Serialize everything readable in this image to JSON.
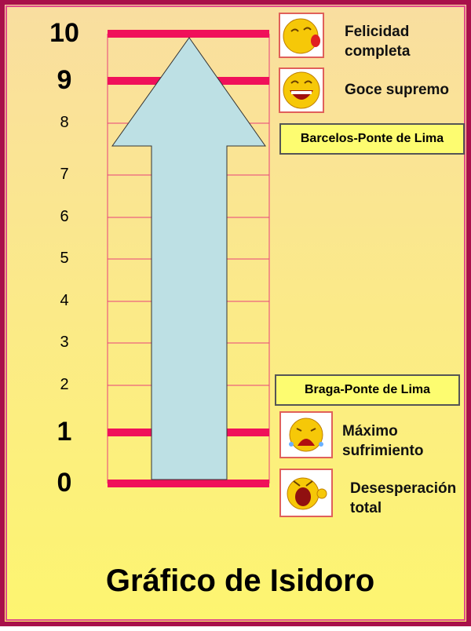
{
  "scale": [
    {
      "value": "10",
      "emphasis": true
    },
    {
      "value": "9",
      "emphasis": true
    },
    {
      "value": "8",
      "emphasis": false
    },
    {
      "value": "7",
      "emphasis": false
    },
    {
      "value": "6",
      "emphasis": false
    },
    {
      "value": "5",
      "emphasis": false
    },
    {
      "value": "4",
      "emphasis": false
    },
    {
      "value": "3",
      "emphasis": false
    },
    {
      "value": "2",
      "emphasis": false
    },
    {
      "value": "1",
      "emphasis": true
    },
    {
      "value": "0",
      "emphasis": true
    }
  ],
  "levels": {
    "l10": {
      "label_line1": "Felicidad",
      "label_line2": "completa",
      "icon": "kissing-face-icon"
    },
    "l9": {
      "label": "Goce supremo",
      "icon": "laughing-face-icon"
    },
    "l1": {
      "label_line1": "Máximo",
      "label_line2": "sufrimiento",
      "icon": "crying-face-icon"
    },
    "l0": {
      "label_line1": "Desesperación",
      "label_line2": "total",
      "icon": "screaming-face-icon"
    }
  },
  "routes": {
    "top": "Barcelos-Ponte de Lima",
    "bottom": "Braga-Ponte de Lima"
  },
  "title": "Gráfico de Isidoro",
  "colors": {
    "thick_line": "#f0105a",
    "thin_line": "#e8407a",
    "arrow": "#bde0e4",
    "route_box": "#fdfc70"
  }
}
